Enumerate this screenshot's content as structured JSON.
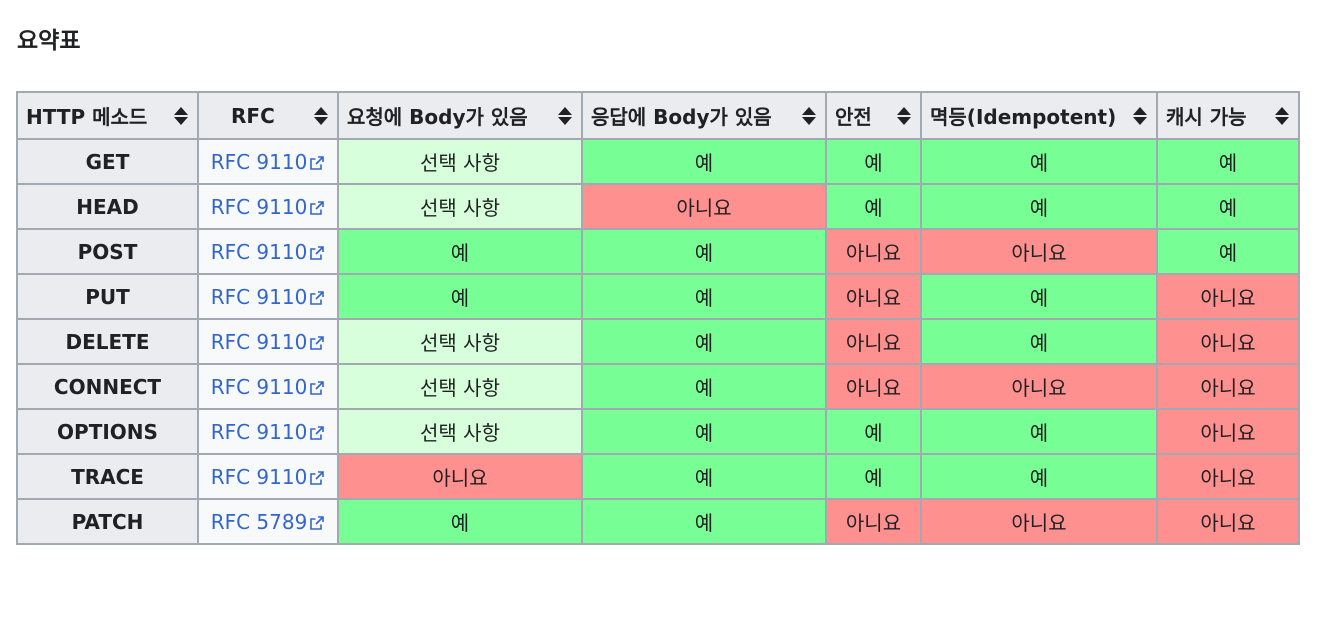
{
  "heading": "요약표",
  "columns": [
    {
      "label": "HTTP 메소드"
    },
    {
      "label": "RFC"
    },
    {
      "label": "요청에 Body가 있음"
    },
    {
      "label": "응답에 Body가 있음"
    },
    {
      "label": "안전"
    },
    {
      "label": "멱등(Idempotent)"
    },
    {
      "label": "캐시 가능"
    }
  ],
  "rows": [
    {
      "method": "GET",
      "rfc": "RFC 9110",
      "req_body": "선택 사항",
      "res_body": "예",
      "safe": "예",
      "idempotent": "예",
      "cacheable": "예"
    },
    {
      "method": "HEAD",
      "rfc": "RFC 9110",
      "req_body": "선택 사항",
      "res_body": "아니요",
      "safe": "예",
      "idempotent": "예",
      "cacheable": "예"
    },
    {
      "method": "POST",
      "rfc": "RFC 9110",
      "req_body": "예",
      "res_body": "예",
      "safe": "아니요",
      "idempotent": "아니요",
      "cacheable": "예"
    },
    {
      "method": "PUT",
      "rfc": "RFC 9110",
      "req_body": "예",
      "res_body": "예",
      "safe": "아니요",
      "idempotent": "예",
      "cacheable": "아니요"
    },
    {
      "method": "DELETE",
      "rfc": "RFC 9110",
      "req_body": "선택 사항",
      "res_body": "예",
      "safe": "아니요",
      "idempotent": "예",
      "cacheable": "아니요"
    },
    {
      "method": "CONNECT",
      "rfc": "RFC 9110",
      "req_body": "선택 사항",
      "res_body": "예",
      "safe": "아니요",
      "idempotent": "아니요",
      "cacheable": "아니요"
    },
    {
      "method": "OPTIONS",
      "rfc": "RFC 9110",
      "req_body": "선택 사항",
      "res_body": "예",
      "safe": "예",
      "idempotent": "예",
      "cacheable": "아니요"
    },
    {
      "method": "TRACE",
      "rfc": "RFC 9110",
      "req_body": "아니요",
      "res_body": "예",
      "safe": "예",
      "idempotent": "예",
      "cacheable": "아니요"
    },
    {
      "method": "PATCH",
      "rfc": "RFC 5789",
      "req_body": "예",
      "res_body": "예",
      "safe": "아니요",
      "idempotent": "아니요",
      "cacheable": "아니요"
    }
  ],
  "value_colors": {
    "예": "#77ff95",
    "아니요": "#ff9090",
    "선택 사항": "#d8ffdc"
  },
  "icons": {
    "sort": "sort-icon",
    "external_link": "external-link-icon"
  }
}
